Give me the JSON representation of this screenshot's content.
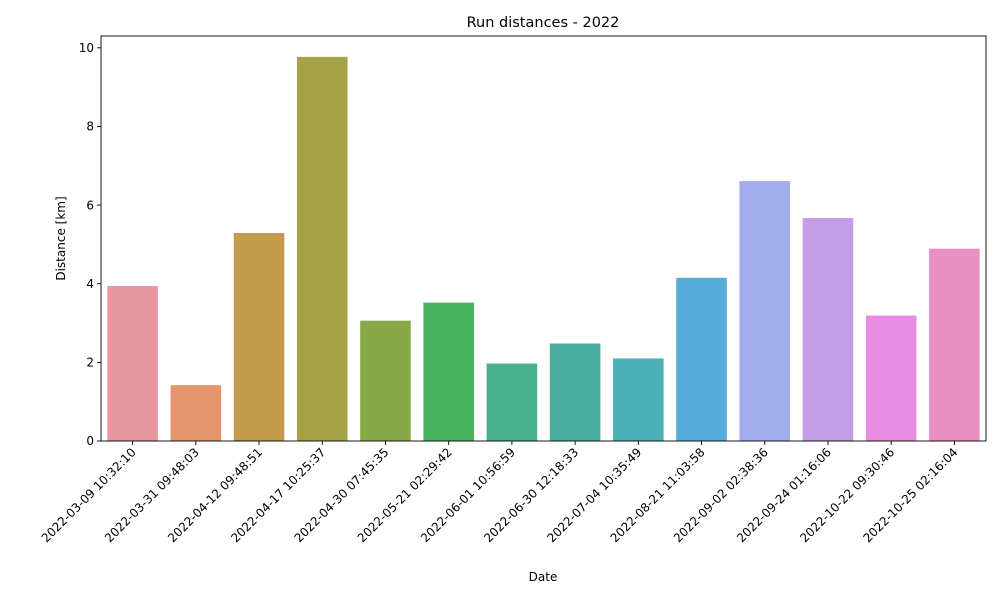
{
  "chart_data": {
    "type": "bar",
    "title": "Run distances - 2022",
    "xlabel": "Date",
    "ylabel": "Distance [km]",
    "ylim": [
      0,
      10.3
    ],
    "yticks": [
      "0",
      "2",
      "4",
      "6",
      "8",
      "10"
    ],
    "grid": false,
    "categories": [
      "2022-03-09 10:32:10",
      "2022-03-31 09:48:03",
      "2022-04-12 09:48:51",
      "2022-04-17 10:25:37",
      "2022-04-30 07:45:35",
      "2022-05-21 02:29:42",
      "2022-06-01 10:56:59",
      "2022-06-30 12:18:33",
      "2022-07-04 10:35:49",
      "2022-08-21 11:03:58",
      "2022-09-02 02:38:36",
      "2022-09-24 01:16:06",
      "2022-10-22 09:30:46",
      "2022-10-25 02:16:04"
    ],
    "values": [
      3.94,
      1.42,
      5.29,
      9.77,
      3.06,
      3.52,
      1.97,
      2.48,
      2.1,
      4.15,
      6.61,
      5.67,
      3.19,
      4.89
    ],
    "colors": [
      "#e9979f",
      "#e5956b",
      "#c29b4c",
      "#a6a246",
      "#88aa46",
      "#48b15e",
      "#4ab08d",
      "#4aae9f",
      "#4bb0b8",
      "#55acd9",
      "#a1aeeb",
      "#c59de6",
      "#e78be3",
      "#e98fc2"
    ]
  }
}
